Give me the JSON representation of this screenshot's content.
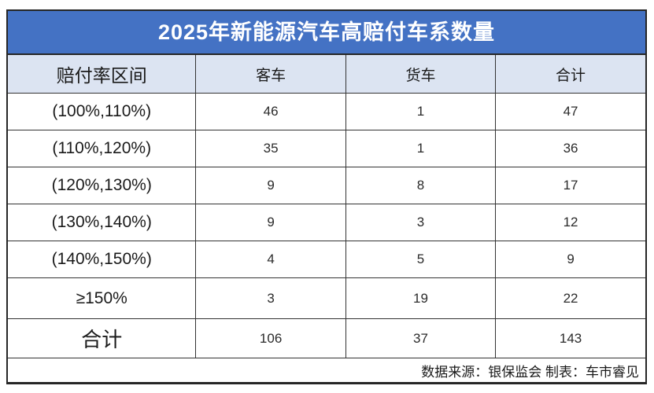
{
  "title": "2025年新能源汽车高赔付车系数量",
  "table": {
    "headers": [
      "赔付率区间",
      "客车",
      "货车",
      "合计"
    ],
    "rows": [
      {
        "range": "(100%,110%)",
        "bus": "46",
        "truck": "1",
        "total": "47"
      },
      {
        "range": "(110%,120%)",
        "bus": "35",
        "truck": "1",
        "total": "36"
      },
      {
        "range": "(120%,130%)",
        "bus": "9",
        "truck": "8",
        "total": "17"
      },
      {
        "range": "(130%,140%)",
        "bus": "9",
        "truck": "3",
        "total": "12"
      },
      {
        "range": "(140%,150%)",
        "bus": "4",
        "truck": "5",
        "total": "9"
      },
      {
        "range": "≥150%",
        "bus": "3",
        "truck": "19",
        "total": "22"
      }
    ],
    "total_row": {
      "label": "合计",
      "bus": "106",
      "truck": "37",
      "total": "143"
    }
  },
  "footer": "数据来源：银保监会 制表：车市睿见",
  "colors": {
    "title_bg": "#4472C4",
    "title_text": "#FFFFFF",
    "header_bg": "#DCE4F2",
    "border": "#333333"
  },
  "chart_data": {
    "type": "table",
    "title": "2025年新能源汽车高赔付车系数量",
    "columns": [
      "赔付率区间",
      "客车",
      "货车",
      "合计"
    ],
    "rows": [
      [
        "(100%,110%)",
        46,
        1,
        47
      ],
      [
        "(110%,120%)",
        35,
        1,
        36
      ],
      [
        "(120%,130%)",
        9,
        8,
        17
      ],
      [
        "(130%,140%)",
        9,
        3,
        12
      ],
      [
        "(140%,150%)",
        4,
        5,
        9
      ],
      [
        "≥150%",
        3,
        19,
        22
      ],
      [
        "合计",
        106,
        37,
        143
      ]
    ],
    "source_note": "数据来源：银保监会 制表：车市睿见"
  }
}
